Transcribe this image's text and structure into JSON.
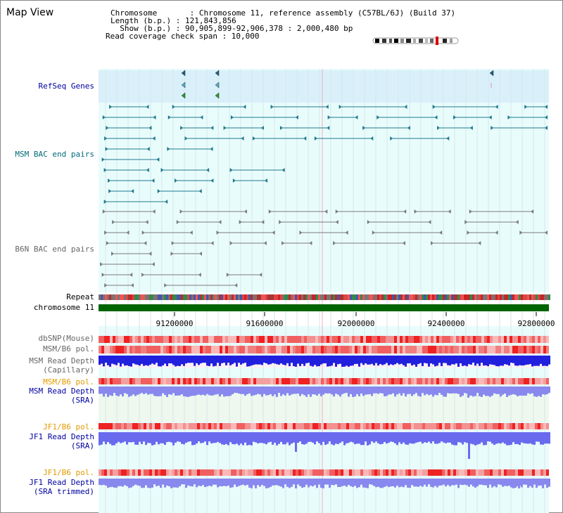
{
  "page": {
    "title": "Map View"
  },
  "info": {
    "chromosome_line": "Chromosome       : Chromosome 11, reference assembly (C57BL/6J) (Build 37)",
    "length_line": "Length (b.p.) : 121,843,856",
    "show_line": "  Show (b.p.) : 90,905,899-92,906,378 : 2,000,480 bp",
    "coverage_line": "Read coverage check span : 10,000"
  },
  "tracks": {
    "refseq": "RefSeq Genes",
    "msm_bac": "MSM BAC end pairs",
    "b6n_bac": "B6N BAC end pairs",
    "repeat": "Repeat",
    "chromosome": "chromosome 11",
    "dbsnp": "dbSNP(Mouse)",
    "msm_b6_pol_1": "MSM/B6 pol.",
    "msm_read_depth_cap_1": "MSM Read Depth",
    "msm_read_depth_cap_2": "(Capillary)",
    "msm_b6_pol_2": "MSM/B6 pol.",
    "msm_read_depth_sra_1": "MSM Read Depth",
    "msm_read_depth_sra_2": "(SRA)",
    "jf1_b6_pol_1": "JF1/B6 pol.",
    "jf1_read_depth_sra_1": "JF1 Read Depth",
    "jf1_read_depth_sra_2": "(SRA)",
    "jf1_b6_pol_2": "JF1/B6 pol.",
    "jf1_read_depth_trim_1": "JF1 Read Depth",
    "jf1_read_depth_trim_2": "(SRA trimmed)"
  },
  "axis": {
    "ticks": [
      "91200000",
      "91600000",
      "92000000",
      "92400000",
      "92800000"
    ]
  },
  "colors": {
    "refseq_bg": "#d9f0fa",
    "track_bg": "#e9fcfc",
    "bac_msm": "#1f7a8c",
    "bac_b6n": "#7a7a7a",
    "chromosome": "#006400",
    "read_depth": "#2020dd",
    "read_depth_light": "#8888ee",
    "pol_red": "#ee3333",
    "label_navy": "#0000a0",
    "label_orange": "#e39a00"
  }
}
